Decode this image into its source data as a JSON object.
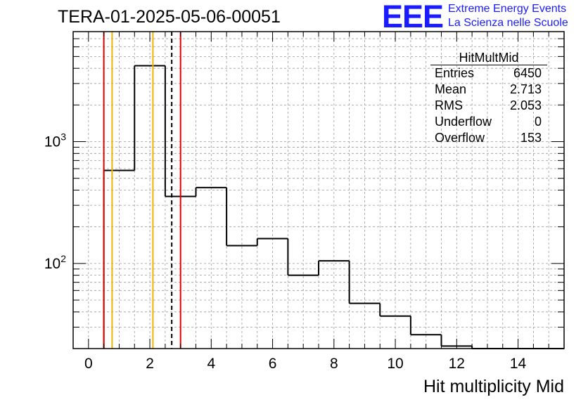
{
  "title": "TERA-01-2025-05-06-00051",
  "logo": {
    "mark": "EEE",
    "line1": "Extreme Energy Events",
    "line2": "La Scienza nelle Scuole",
    "color": "#1b1bff"
  },
  "stats": {
    "name": "HitMultMid",
    "rows": [
      {
        "label": "Entries",
        "value": "6450"
      },
      {
        "label": "Mean",
        "value": "2.713"
      },
      {
        "label": "RMS",
        "value": "2.053"
      },
      {
        "label": "Underflow",
        "value": "0"
      },
      {
        "label": "Overflow",
        "value": "153"
      }
    ]
  },
  "chart_data": {
    "type": "bar",
    "style": "step-histogram",
    "xlabel": "Hit multiplicity Mid",
    "ylabel": "",
    "xlim": [
      -0.5,
      15.5
    ],
    "ylim": [
      20,
      8000
    ],
    "yscale": "log",
    "grid": true,
    "xticks": [
      0,
      2,
      4,
      6,
      8,
      10,
      12,
      14
    ],
    "xtick_labels": [
      "0",
      "2",
      "4",
      "6",
      "8",
      "10",
      "12",
      "14"
    ],
    "yticks": [
      100,
      1000
    ],
    "ytick_labels": [
      "10^2",
      "10^3"
    ],
    "bins": [
      {
        "x0": 0.5,
        "x1": 1.5,
        "value": 580
      },
      {
        "x0": 1.5,
        "x1": 2.5,
        "value": 4200
      },
      {
        "x0": 2.5,
        "x1": 3.5,
        "value": 355
      },
      {
        "x0": 3.5,
        "x1": 4.5,
        "value": 420
      },
      {
        "x0": 4.5,
        "x1": 5.5,
        "value": 140
      },
      {
        "x0": 5.5,
        "x1": 6.5,
        "value": 160
      },
      {
        "x0": 6.5,
        "x1": 7.5,
        "value": 80
      },
      {
        "x0": 7.5,
        "x1": 8.5,
        "value": 105
      },
      {
        "x0": 8.5,
        "x1": 9.5,
        "value": 47
      },
      {
        "x0": 9.5,
        "x1": 10.5,
        "value": 37
      },
      {
        "x0": 10.5,
        "x1": 11.5,
        "value": 26
      },
      {
        "x0": 11.5,
        "x1": 12.5,
        "value": 21
      },
      {
        "x0": 12.5,
        "x1": 15.5,
        "value": 20
      }
    ],
    "vlines": [
      {
        "x": 0.5,
        "color": "#e00000",
        "style": "solid"
      },
      {
        "x": 0.77,
        "color": "#f0b400",
        "style": "solid"
      },
      {
        "x": 2.1,
        "color": "#f0b400",
        "style": "solid"
      },
      {
        "x": 2.713,
        "color": "#000000",
        "style": "dashed"
      },
      {
        "x": 3.0,
        "color": "#e00000",
        "style": "solid"
      }
    ]
  }
}
